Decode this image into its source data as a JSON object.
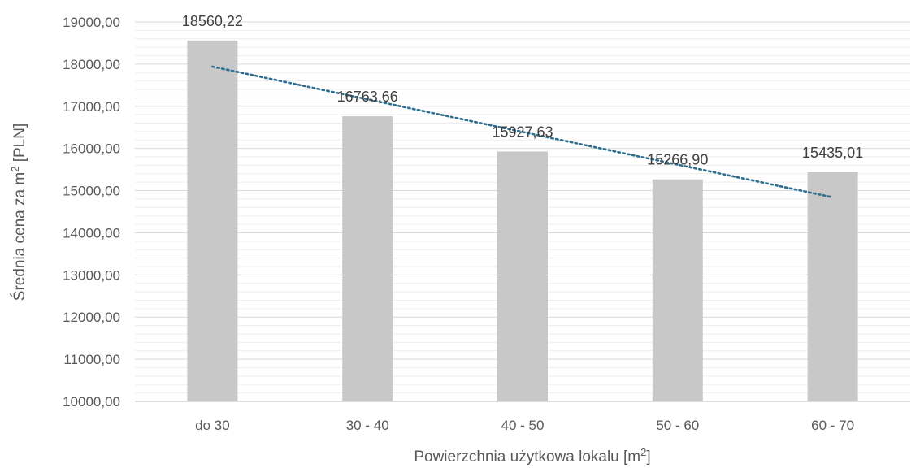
{
  "chart_data": {
    "type": "bar",
    "categories": [
      "do 30",
      "30 - 40",
      "40 - 50",
      "50 - 60",
      "60 - 70"
    ],
    "values": [
      18560.22,
      16763.66,
      15927.63,
      15266.9,
      15435.01
    ],
    "data_labels": [
      "18560,22",
      "16763,66",
      "15927,63",
      "15266,90",
      "15435,01"
    ],
    "ylim": [
      10000,
      19000
    ],
    "yticks": [
      10000,
      11000,
      12000,
      13000,
      14000,
      15000,
      16000,
      17000,
      18000,
      19000
    ],
    "ytick_labels": [
      "10000,00",
      "11000,00",
      "12000,00",
      "13000,00",
      "14000,00",
      "15000,00",
      "16000,00",
      "17000,00",
      "18000,00",
      "19000,00"
    ],
    "ylabel_main": "Średnia cena za m",
    "ylabel_sup": "2",
    "ylabel_tail": " [PLN]",
    "xlabel_main": "Powierzchnia użytkowa lokalu [m",
    "xlabel_sup": "2",
    "xlabel_tail": "]",
    "trendline": {
      "type": "linear",
      "style": "dotted",
      "color": "#2E6E8E"
    },
    "bar_color": "#C8C8C8",
    "grid": {
      "major": true,
      "minor": true,
      "major_color": "#D9D9D9",
      "minor_color": "#EDEDED"
    }
  }
}
